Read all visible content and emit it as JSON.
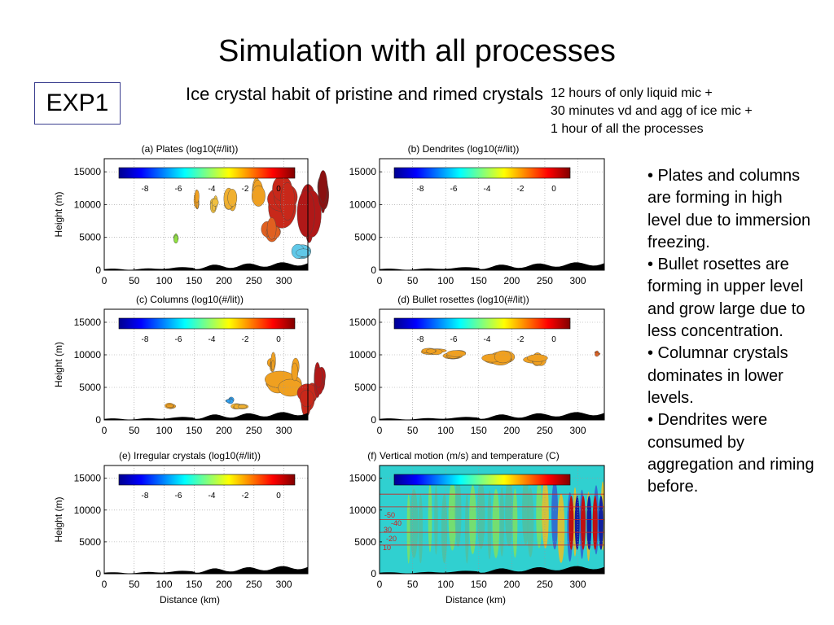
{
  "slide": {
    "title": "Simulation with all processes",
    "exp_label": "EXP1",
    "subtitle": "Ice crystal habit of pristine and rimed crystals",
    "note_lines": [
      "12 hours of only liquid mic +",
      "30 minutes vd and agg of ice mic +",
      "1 hour of all the processes"
    ],
    "bullets": [
      "• Plates and columns are forming in high level due to immersion freezing.",
      "• Bullet rosettes are forming in upper level and grow large due to less concentration.",
      "• Columnar crystals dominates in lower levels.",
      "• Dendrites were consumed by aggregation and riming before."
    ]
  },
  "figure": {
    "colorbar_ticks": [
      "-8",
      "-6",
      "-4",
      "-2",
      "0"
    ],
    "x_ticks": [
      "0",
      "50",
      "100",
      "150",
      "200",
      "250",
      "300"
    ],
    "y_ticks": [
      "0",
      "5000",
      "10000",
      "15000"
    ],
    "y_label": "Height (m)",
    "x_label": "Distance (km)",
    "panels": [
      {
        "title": "(a) Plates (log10(#/lit))"
      },
      {
        "title": "(b) Dendrites (log10(#/lit))"
      },
      {
        "title": "(c) Columns (log10(#/lit))"
      },
      {
        "title": "(d) Bullet rosettes (log10(#/lit))"
      },
      {
        "title": "(e) Irregular crystals (log10(#/lit))"
      },
      {
        "title": "(f) Vertical motion (m/s) and temperature (C)"
      }
    ],
    "temperature_labels": [
      "-50",
      "-40",
      "30",
      "-20",
      "10"
    ],
    "colors": {
      "cold": "#1a2a9a",
      "warm": "#c0101a",
      "mid": "#f0a020",
      "field": "#30d0d0"
    }
  }
}
